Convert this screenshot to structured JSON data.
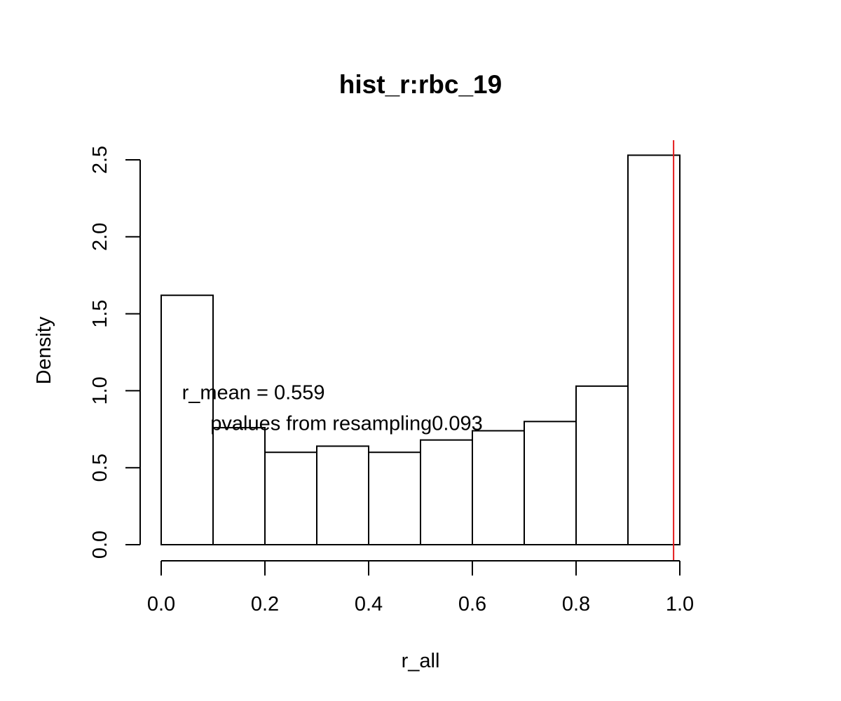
{
  "chart_data": {
    "type": "bar",
    "subtype": "histogram",
    "title": "hist_r:rbc_19",
    "xlabel": "r_all",
    "ylabel": "Density",
    "xlim": [
      0.0,
      1.0
    ],
    "ylim": [
      0.0,
      2.5
    ],
    "bin_edges": [
      0.0,
      0.1,
      0.2,
      0.3,
      0.4,
      0.5,
      0.6,
      0.7,
      0.8,
      0.9,
      1.0
    ],
    "values": [
      1.62,
      0.76,
      0.6,
      0.64,
      0.6,
      0.68,
      0.74,
      0.8,
      1.03,
      2.53
    ],
    "x_ticks": [
      0.0,
      0.2,
      0.4,
      0.6,
      0.8,
      1.0
    ],
    "x_tick_labels": [
      "0.0",
      "0.2",
      "0.4",
      "0.6",
      "0.8",
      "1.0"
    ],
    "y_ticks": [
      0.0,
      0.5,
      1.0,
      1.5,
      2.0,
      2.5
    ],
    "y_tick_labels": [
      "0.0",
      "0.5",
      "1.0",
      "1.5",
      "2.0",
      "2.5"
    ],
    "reference_line": {
      "x": 0.988,
      "color": "#e41a1c"
    },
    "annotations": [
      {
        "text": "r_mean = 0.559",
        "x": 0.04,
        "y": 0.99
      },
      {
        "text": "pvalues from resampling0.093",
        "x": 0.095,
        "y": 0.79
      }
    ]
  }
}
